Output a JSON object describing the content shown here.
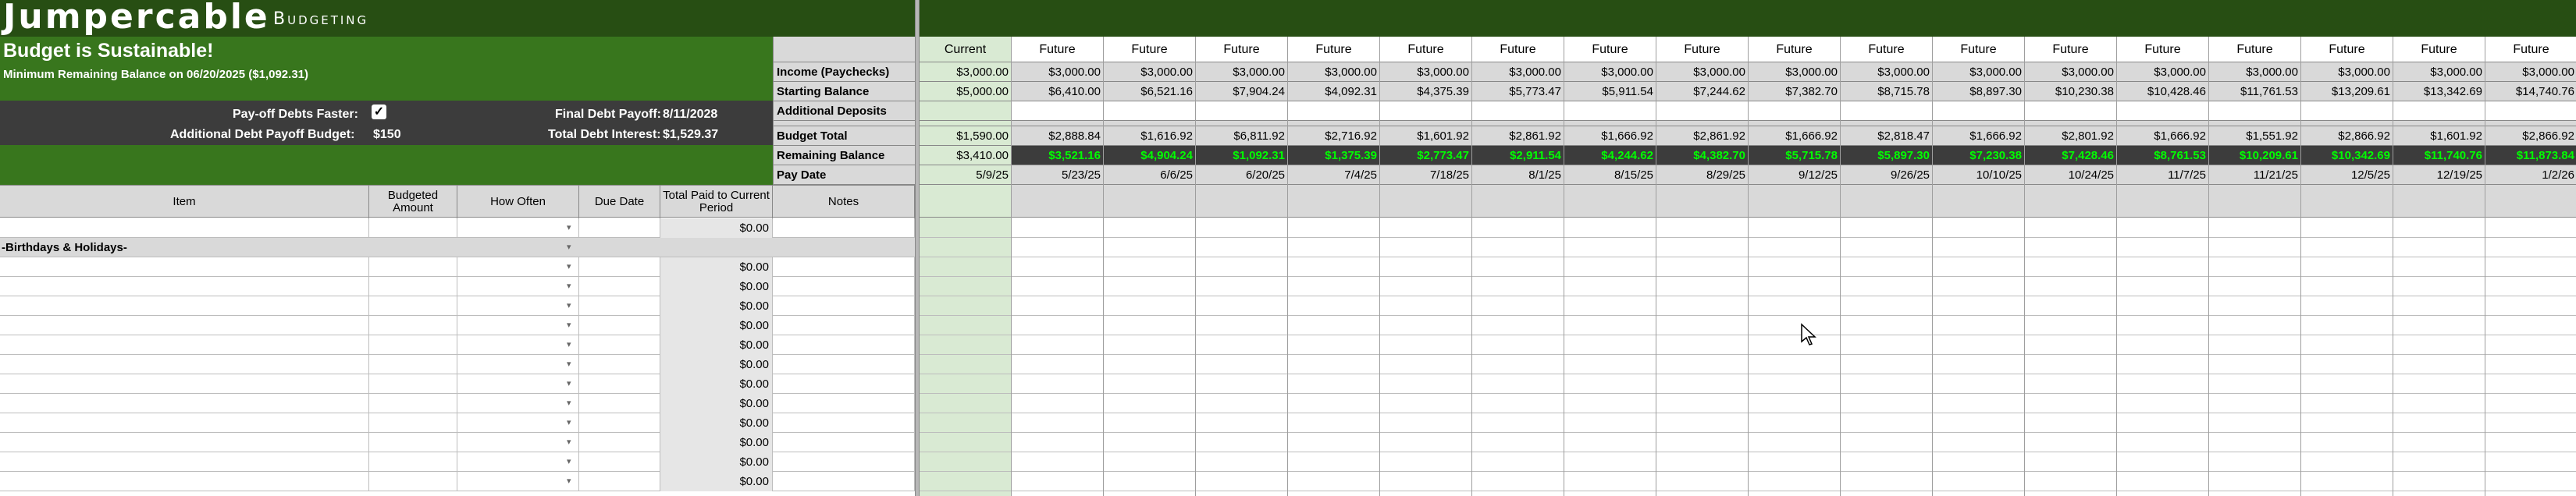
{
  "app": {
    "logo_main": "Jumpercable",
    "logo_sub": "Budgeting"
  },
  "status": {
    "title": "Budget is Sustainable!",
    "min_balance": "Minimum Remaining Balance on 06/20/2025  ($1,092.31)"
  },
  "options": {
    "payoff_faster_label": "Pay-off Debts Faster:",
    "payoff_faster_checked": "✓",
    "additional_budget_label": "Additional Debt Payoff Budget:",
    "additional_budget_value": "$150",
    "final_payoff_label": "Final Debt Payoff:",
    "final_payoff_value": "8/11/2028",
    "total_interest_label": "Total Debt Interest:",
    "total_interest_value": "$1,529.37"
  },
  "row_labels": {
    "income": "Income (Paychecks)",
    "starting": "Starting Balance",
    "additional": "Additional Deposits",
    "budget": "Budget Total",
    "remaining": "Remaining Balance",
    "paydate": "Pay Date"
  },
  "table_headers": {
    "item": "Item",
    "budgeted": "Budgeted Amount",
    "how_often": "How Often",
    "due_date": "Due Date",
    "total_paid": "Total Paid to Current Period",
    "notes": "Notes"
  },
  "item_rows": {
    "first_paid": "$0.00",
    "category": "-Birthdays & Holidays-",
    "paid_values": [
      "$0.00",
      "$0.00",
      "$0.00",
      "$0.00",
      "$0.00",
      "$0.00",
      "$0.00",
      "$0.00",
      "$0.00",
      "$0.00",
      "$0.00",
      "$0.00"
    ]
  },
  "columns": [
    {
      "header": "Current",
      "income": "$3,000.00",
      "starting": "$5,000.00",
      "additional": "",
      "budget": "$1,590.00",
      "remaining": "$3,410.00",
      "paydate": "5/9/25"
    },
    {
      "header": "Future",
      "income": "$3,000.00",
      "starting": "$6,410.00",
      "additional": "",
      "budget": "$2,888.84",
      "remaining": "$3,521.16",
      "paydate": "5/23/25"
    },
    {
      "header": "Future",
      "income": "$3,000.00",
      "starting": "$6,521.16",
      "additional": "",
      "budget": "$1,616.92",
      "remaining": "$4,904.24",
      "paydate": "6/6/25"
    },
    {
      "header": "Future",
      "income": "$3,000.00",
      "starting": "$7,904.24",
      "additional": "",
      "budget": "$6,811.92",
      "remaining": "$1,092.31",
      "paydate": "6/20/25"
    },
    {
      "header": "Future",
      "income": "$3,000.00",
      "starting": "$4,092.31",
      "additional": "",
      "budget": "$2,716.92",
      "remaining": "$1,375.39",
      "paydate": "7/4/25"
    },
    {
      "header": "Future",
      "income": "$3,000.00",
      "starting": "$4,375.39",
      "additional": "",
      "budget": "$1,601.92",
      "remaining": "$2,773.47",
      "paydate": "7/18/25"
    },
    {
      "header": "Future",
      "income": "$3,000.00",
      "starting": "$5,773.47",
      "additional": "",
      "budget": "$2,861.92",
      "remaining": "$2,911.54",
      "paydate": "8/1/25"
    },
    {
      "header": "Future",
      "income": "$3,000.00",
      "starting": "$5,911.54",
      "additional": "",
      "budget": "$1,666.92",
      "remaining": "$4,244.62",
      "paydate": "8/15/25"
    },
    {
      "header": "Future",
      "income": "$3,000.00",
      "starting": "$7,244.62",
      "additional": "",
      "budget": "$2,861.92",
      "remaining": "$4,382.70",
      "paydate": "8/29/25"
    },
    {
      "header": "Future",
      "income": "$3,000.00",
      "starting": "$7,382.70",
      "additional": "",
      "budget": "$1,666.92",
      "remaining": "$5,715.78",
      "paydate": "9/12/25"
    },
    {
      "header": "Future",
      "income": "$3,000.00",
      "starting": "$8,715.78",
      "additional": "",
      "budget": "$2,818.47",
      "remaining": "$5,897.30",
      "paydate": "9/26/25"
    },
    {
      "header": "Future",
      "income": "$3,000.00",
      "starting": "$8,897.30",
      "additional": "",
      "budget": "$1,666.92",
      "remaining": "$7,230.38",
      "paydate": "10/10/25"
    },
    {
      "header": "Future",
      "income": "$3,000.00",
      "starting": "$10,230.38",
      "additional": "",
      "budget": "$2,801.92",
      "remaining": "$7,428.46",
      "paydate": "10/24/25"
    },
    {
      "header": "Future",
      "income": "$3,000.00",
      "starting": "$10,428.46",
      "additional": "",
      "budget": "$1,666.92",
      "remaining": "$8,761.53",
      "paydate": "11/7/25"
    },
    {
      "header": "Future",
      "income": "$3,000.00",
      "starting": "$11,761.53",
      "additional": "",
      "budget": "$1,551.92",
      "remaining": "$10,209.61",
      "paydate": "11/21/25"
    },
    {
      "header": "Future",
      "income": "$3,000.00",
      "starting": "$13,209.61",
      "additional": "",
      "budget": "$2,866.92",
      "remaining": "$10,342.69",
      "paydate": "12/5/25"
    },
    {
      "header": "Future",
      "income": "$3,000.00",
      "starting": "$13,342.69",
      "additional": "",
      "budget": "$1,601.92",
      "remaining": "$11,740.76",
      "paydate": "12/19/25"
    },
    {
      "header": "Future",
      "income": "$3,000.00",
      "starting": "$14,740.76",
      "additional": "",
      "budget": "$2,866.92",
      "remaining": "$11,873.84",
      "paydate": "1/2/26"
    }
  ],
  "colors": {
    "dark_green": "#274e13",
    "mid_green": "#38761d",
    "current_green": "#d9ead3",
    "bright_green_text": "#00ff00",
    "dark_grey": "#3c3c3c"
  }
}
